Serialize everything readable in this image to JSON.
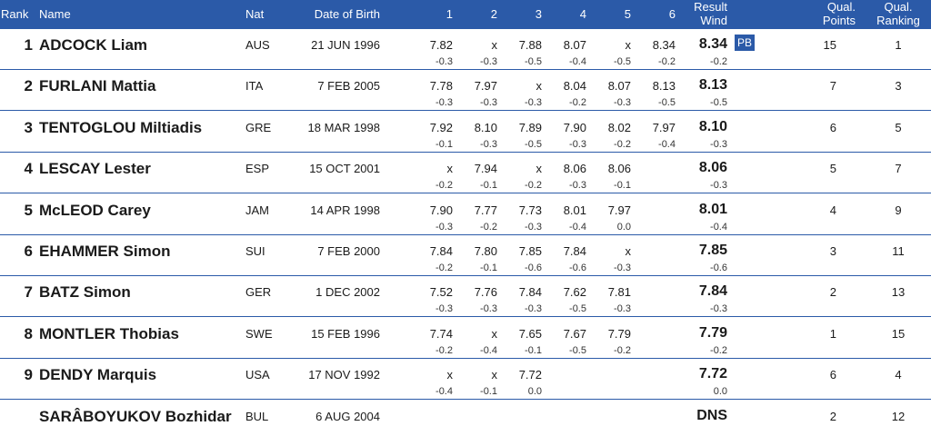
{
  "headers": {
    "rank": "Rank",
    "name": "Name",
    "nat": "Nat",
    "dob": "Date of Birth",
    "att1": "1",
    "att2": "2",
    "att3": "3",
    "att4": "4",
    "att5": "5",
    "att6": "6",
    "result": "Result",
    "wind": "Wind",
    "qual_points_1": "Qual.",
    "qual_points_2": "Points",
    "qual_ranking_1": "Qual.",
    "qual_ranking_2": "Ranking"
  },
  "rows": [
    {
      "rank": "1",
      "name": "ADCOCK Liam",
      "nat": "AUS",
      "dob": "21 JUN 1996",
      "attempts": [
        "7.82",
        "x",
        "7.88",
        "8.07",
        "x",
        "8.34"
      ],
      "winds": [
        "-0.3",
        "-0.3",
        "-0.5",
        "-0.4",
        "-0.5",
        "-0.2"
      ],
      "result": "8.34",
      "result_wind": "-0.2",
      "badge": "PB",
      "points": "15",
      "ranking": "1"
    },
    {
      "rank": "2",
      "name": "FURLANI Mattia",
      "nat": "ITA",
      "dob": "7 FEB 2005",
      "attempts": [
        "7.78",
        "7.97",
        "x",
        "8.04",
        "8.07",
        "8.13"
      ],
      "winds": [
        "-0.3",
        "-0.3",
        "-0.3",
        "-0.2",
        "-0.3",
        "-0.5"
      ],
      "result": "8.13",
      "result_wind": "-0.5",
      "badge": "",
      "points": "7",
      "ranking": "3"
    },
    {
      "rank": "3",
      "name": "TENTOGLOU Miltiadis",
      "nat": "GRE",
      "dob": "18 MAR 1998",
      "attempts": [
        "7.92",
        "8.10",
        "7.89",
        "7.90",
        "8.02",
        "7.97"
      ],
      "winds": [
        "-0.1",
        "-0.3",
        "-0.5",
        "-0.3",
        "-0.2",
        "-0.4"
      ],
      "result": "8.10",
      "result_wind": "-0.3",
      "badge": "",
      "points": "6",
      "ranking": "5"
    },
    {
      "rank": "4",
      "name": "LESCAY Lester",
      "nat": "ESP",
      "dob": "15 OCT 2001",
      "attempts": [
        "x",
        "7.94",
        "x",
        "8.06",
        "8.06",
        ""
      ],
      "winds": [
        "-0.2",
        "-0.1",
        "-0.2",
        "-0.3",
        "-0.1",
        ""
      ],
      "result": "8.06",
      "result_wind": "-0.3",
      "badge": "",
      "points": "5",
      "ranking": "7"
    },
    {
      "rank": "5",
      "name": "McLEOD Carey",
      "nat": "JAM",
      "dob": "14 APR 1998",
      "attempts": [
        "7.90",
        "7.77",
        "7.73",
        "8.01",
        "7.97",
        ""
      ],
      "winds": [
        "-0.3",
        "-0.2",
        "-0.3",
        "-0.4",
        "0.0",
        ""
      ],
      "result": "8.01",
      "result_wind": "-0.4",
      "badge": "",
      "points": "4",
      "ranking": "9"
    },
    {
      "rank": "6",
      "name": "EHAMMER Simon",
      "nat": "SUI",
      "dob": "7 FEB 2000",
      "attempts": [
        "7.84",
        "7.80",
        "7.85",
        "7.84",
        "x",
        ""
      ],
      "winds": [
        "-0.2",
        "-0.1",
        "-0.6",
        "-0.6",
        "-0.3",
        ""
      ],
      "result": "7.85",
      "result_wind": "-0.6",
      "badge": "",
      "points": "3",
      "ranking": "11"
    },
    {
      "rank": "7",
      "name": "BATZ Simon",
      "nat": "GER",
      "dob": "1 DEC 2002",
      "attempts": [
        "7.52",
        "7.76",
        "7.84",
        "7.62",
        "7.81",
        ""
      ],
      "winds": [
        "-0.3",
        "-0.3",
        "-0.3",
        "-0.5",
        "-0.3",
        ""
      ],
      "result": "7.84",
      "result_wind": "-0.3",
      "badge": "",
      "points": "2",
      "ranking": "13"
    },
    {
      "rank": "8",
      "name": "MONTLER Thobias",
      "nat": "SWE",
      "dob": "15 FEB 1996",
      "attempts": [
        "7.74",
        "x",
        "7.65",
        "7.67",
        "7.79",
        ""
      ],
      "winds": [
        "-0.2",
        "-0.4",
        "-0.1",
        "-0.5",
        "-0.2",
        ""
      ],
      "result": "7.79",
      "result_wind": "-0.2",
      "badge": "",
      "points": "1",
      "ranking": "15"
    },
    {
      "rank": "9",
      "name": "DENDY Marquis",
      "nat": "USA",
      "dob": "17 NOV 1992",
      "attempts": [
        "x",
        "x",
        "7.72",
        "",
        "",
        ""
      ],
      "winds": [
        "-0.4",
        "-0.1",
        "0.0",
        "",
        "",
        ""
      ],
      "result": "7.72",
      "result_wind": "0.0",
      "badge": "",
      "points": "6",
      "ranking": "4"
    },
    {
      "rank": "",
      "name": "SARÂBOYUKOV Bozhidar",
      "nat": "BUL",
      "dob": "6 AUG 2004",
      "attempts": [
        "",
        "",
        "",
        "",
        "",
        ""
      ],
      "winds": [
        "",
        "",
        "",
        "",
        "",
        ""
      ],
      "result": "DNS",
      "result_wind": "",
      "badge": "",
      "points": "2",
      "ranking": "12"
    }
  ]
}
